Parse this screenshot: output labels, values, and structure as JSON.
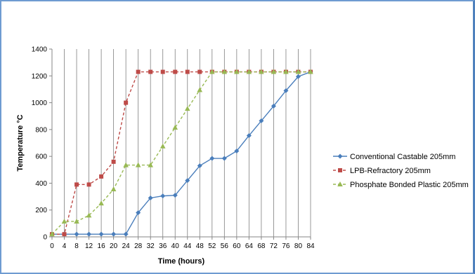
{
  "chart_data": {
    "type": "line",
    "title": "",
    "xlabel": "Time (hours)",
    "ylabel": "Temperature °C",
    "x": [
      0,
      4,
      8,
      12,
      16,
      20,
      24,
      28,
      32,
      36,
      40,
      44,
      48,
      52,
      56,
      60,
      64,
      68,
      72,
      76,
      80,
      84
    ],
    "ylim": [
      0,
      1400
    ],
    "yticks": [
      0,
      200,
      400,
      600,
      800,
      1000,
      1200,
      1400
    ],
    "grid": "vertical lines at each x",
    "legend_position": "right",
    "series": [
      {
        "name": "Conventional Castable 205mm",
        "color": "#4a7ebb",
        "marker": "diamond",
        "style": "solid",
        "values": [
          20,
          20,
          20,
          20,
          20,
          20,
          20,
          180,
          290,
          305,
          310,
          420,
          530,
          585,
          585,
          640,
          755,
          865,
          975,
          1090,
          1195,
          1230
        ]
      },
      {
        "name": "LPB-Refractory 205mm",
        "color": "#be4b48",
        "marker": "square",
        "style": "dashed",
        "values": [
          20,
          20,
          390,
          390,
          450,
          560,
          1000,
          1230,
          1230,
          1230,
          1230,
          1230,
          1230,
          1230,
          1230,
          1230,
          1230,
          1230,
          1230,
          1230,
          1230,
          1230
        ]
      },
      {
        "name": "Phosphate Bonded Plastic 205mm",
        "color": "#98b954",
        "marker": "triangle",
        "style": "dashed",
        "values": [
          20,
          115,
          115,
          160,
          250,
          355,
          535,
          535,
          535,
          675,
          815,
          955,
          1095,
          1230,
          1230,
          1230,
          1230,
          1230,
          1230,
          1230,
          1230,
          1230
        ]
      }
    ]
  }
}
